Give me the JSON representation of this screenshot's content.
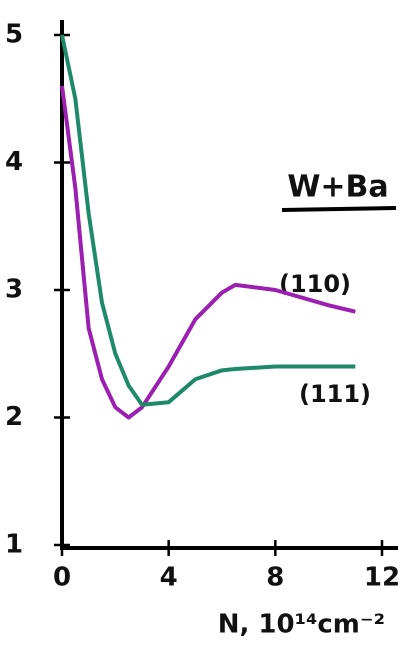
{
  "chart_data": {
    "type": "line",
    "annotation": "W+Ba",
    "x_label": "N, 10¹⁴cm⁻²",
    "x": [
      0,
      0.5,
      1,
      1.5,
      2,
      2.5,
      3,
      4,
      5,
      6,
      6.5,
      8,
      10,
      11
    ],
    "series": [
      {
        "name": "(110)",
        "color": "#9b1fb0",
        "values": [
          4.6,
          3.8,
          2.7,
          2.3,
          2.08,
          2.0,
          2.08,
          2.4,
          2.77,
          2.98,
          3.04,
          3.0,
          2.88,
          2.83
        ]
      },
      {
        "name": "(111)",
        "color": "#1f8a6a",
        "values": [
          5.0,
          4.5,
          3.6,
          2.9,
          2.5,
          2.25,
          2.1,
          2.12,
          2.3,
          2.37,
          2.38,
          2.4,
          2.4,
          2.4
        ]
      }
    ],
    "xlim": [
      0,
      12
    ],
    "xticks": [
      0,
      4,
      8,
      12
    ],
    "ylim": [
      1,
      5
    ],
    "yticks": [
      1,
      2,
      3,
      4,
      5
    ]
  }
}
